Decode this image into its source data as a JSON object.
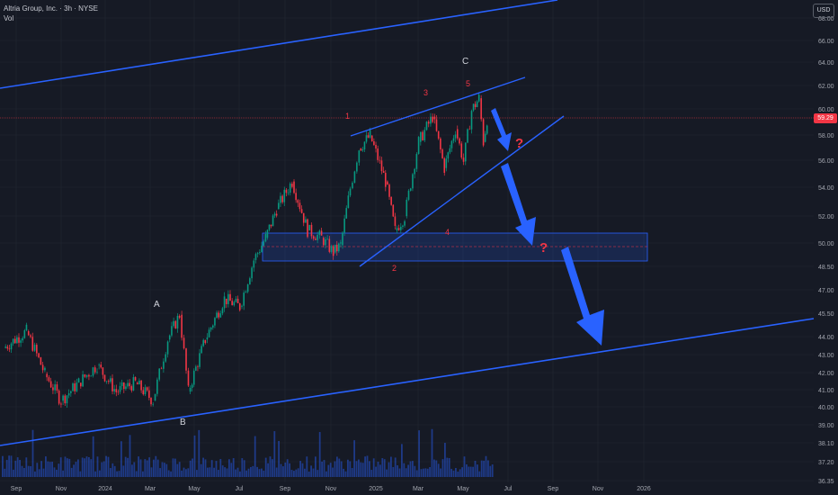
{
  "header": {
    "title": "Altria Group, Inc. · 3h · NYSE",
    "volume_label": "Vol",
    "currency_button": "USD"
  },
  "chart_data": {
    "type": "line",
    "ticker": "Altria Group, Inc.",
    "interval": "3h",
    "exchange": "NYSE",
    "currency": "USD",
    "last_price": "59.29",
    "x_tick_labels": [
      "Sep",
      "Nov",
      "2024",
      "Mar",
      "May",
      "Jul",
      "Sep",
      "Nov",
      "2025",
      "Mar",
      "May",
      "Jul",
      "Sep",
      "Nov",
      "2026"
    ],
    "y_tick_labels": [
      "36.35",
      "37.20",
      "38.10",
      "39.00",
      "40.00",
      "41.00",
      "42.00",
      "43.00",
      "44.00",
      "45.50",
      "47.00",
      "48.50",
      "50.00",
      "52.00",
      "54.00",
      "56.00",
      "58.00",
      "60.00",
      "62.00",
      "64.00",
      "66.00",
      "68.00"
    ],
    "ylim": [
      36.35,
      68.0
    ],
    "y_scale": "log",
    "price_series": {
      "name": "",
      "x": [
        "2023-08-15",
        "2023-09-15",
        "2023-10-10",
        "2023-11-01",
        "2023-11-25",
        "2023-12-20",
        "2024-01-15",
        "2024-02-10",
        "2024-03-05",
        "2024-03-25",
        "2024-04-10",
        "2024-04-22",
        "2024-05-15",
        "2024-06-10",
        "2024-07-01",
        "2024-07-20",
        "2024-08-05",
        "2024-08-20",
        "2024-09-10",
        "2024-10-01",
        "2024-10-20",
        "2024-11-05",
        "2024-11-15",
        "2024-11-28",
        "2024-12-10",
        "2024-12-25",
        "2025-01-15",
        "2025-01-28",
        "2025-02-10",
        "2025-03-01",
        "2025-03-20",
        "2025-04-05",
        "2025-04-20",
        "2025-05-01",
        "2025-05-12",
        "2025-05-22",
        "2025-05-28",
        "2025-06-02"
      ],
      "values": [
        43.5,
        44.5,
        42.0,
        40.5,
        41.5,
        42.5,
        41.0,
        41.5,
        40.5,
        44.0,
        45.5,
        41.0,
        44.0,
        46.5,
        46.0,
        49.0,
        50.5,
        52.5,
        54.5,
        51.0,
        50.5,
        49.5,
        50.0,
        54.0,
        57.0,
        58.0,
        54.5,
        51.0,
        52.0,
        57.5,
        59.5,
        55.5,
        58.5,
        56.0,
        60.0,
        61.0,
        57.5,
        59.29
      ]
    },
    "annotations": {
      "wave_labels": [
        "A",
        "B",
        "C"
      ],
      "impulse_labels": [
        "1",
        "2",
        "3",
        "4",
        "5"
      ],
      "question_marks": [
        "?",
        "?"
      ]
    },
    "annotation_color": "#f23645",
    "drawing_color": "#2962ff",
    "grid": true
  }
}
